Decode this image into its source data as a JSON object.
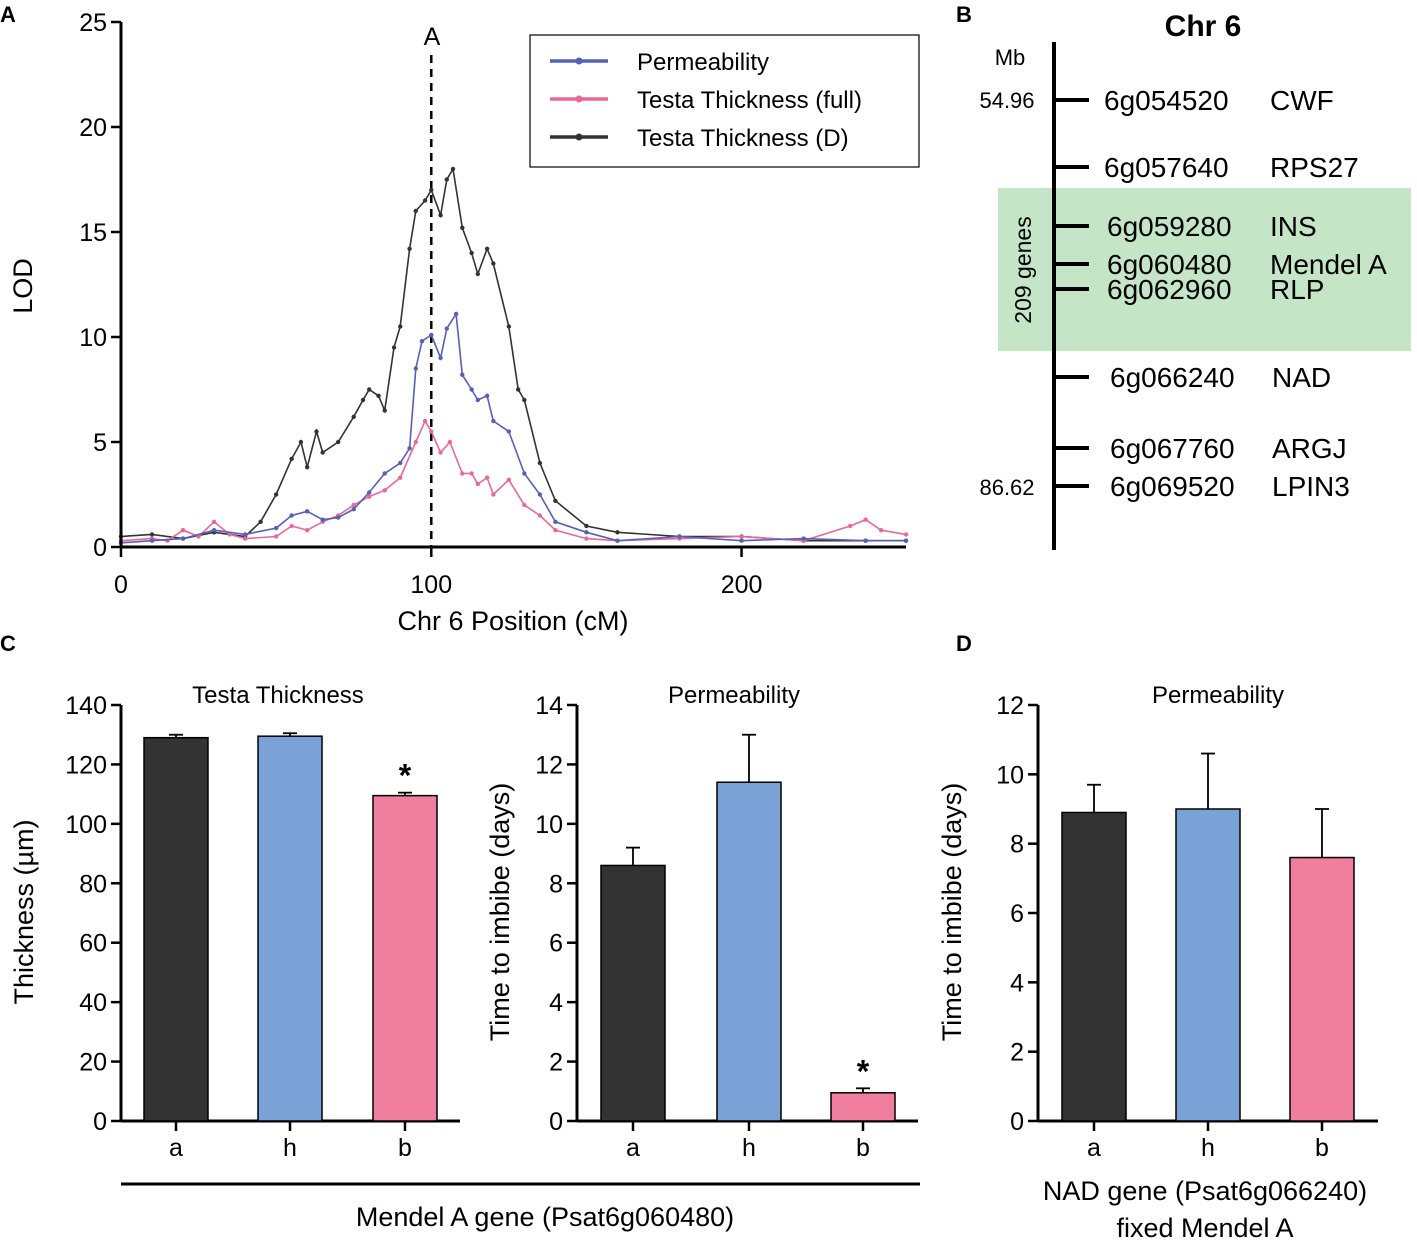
{
  "colors": {
    "dark": "#333333",
    "blue": "#7ba2d6",
    "pink": "#ef7e9f",
    "line_blue": "#5560b8",
    "line_pink": "#e8689a",
    "line_dark": "#333333",
    "green": "#c4e6c7"
  },
  "panelA": {
    "label": "A",
    "marker": "A",
    "chart_data": {
      "type": "line",
      "title": "",
      "xlabel": "Chr 6 Position (cM)",
      "ylabel": "LOD",
      "xlim": [
        0,
        253
      ],
      "ylim": [
        0,
        25
      ],
      "xticks": [
        "0",
        "100",
        "200"
      ],
      "yticks": [
        "0",
        "5",
        "10",
        "15",
        "20",
        "25"
      ],
      "marker_position_cM": 100,
      "legend_position": "top-right",
      "series": [
        {
          "name": "Permeability",
          "color": "#5560b8",
          "x": [
            0,
            10,
            20,
            30,
            40,
            50,
            55,
            60,
            65,
            70,
            75,
            80,
            85,
            90,
            93,
            95,
            97,
            100,
            103,
            105,
            108,
            110,
            113,
            115,
            118,
            120,
            125,
            130,
            135,
            140,
            150,
            160,
            180,
            200,
            220,
            240,
            253
          ],
          "y": [
            0.2,
            0.3,
            0.4,
            0.8,
            0.6,
            0.9,
            1.5,
            1.7,
            1.3,
            1.4,
            1.8,
            2.6,
            3.5,
            4.0,
            4.7,
            8.5,
            9.8,
            10.1,
            9.0,
            10.4,
            11.1,
            8.2,
            7.5,
            7.0,
            7.2,
            6.0,
            5.5,
            3.5,
            2.5,
            1.2,
            0.7,
            0.3,
            0.5,
            0.3,
            0.4,
            0.3,
            0.3
          ]
        },
        {
          "name": "Testa Thickness (full)",
          "color": "#e8689a",
          "x": [
            0,
            10,
            15,
            20,
            25,
            30,
            35,
            40,
            50,
            55,
            60,
            65,
            70,
            75,
            80,
            85,
            90,
            95,
            98,
            100,
            103,
            106,
            110,
            113,
            115,
            118,
            120,
            125,
            130,
            135,
            140,
            150,
            160,
            180,
            200,
            220,
            235,
            240,
            245,
            253
          ],
          "y": [
            0.3,
            0.4,
            0.3,
            0.8,
            0.5,
            1.2,
            0.6,
            0.4,
            0.5,
            1.0,
            0.8,
            1.2,
            1.5,
            2.0,
            2.4,
            2.7,
            3.3,
            5.0,
            6.0,
            5.5,
            4.5,
            5.0,
            3.5,
            3.5,
            3.0,
            3.3,
            2.5,
            3.2,
            2.0,
            1.5,
            0.8,
            0.4,
            0.3,
            0.4,
            0.5,
            0.3,
            1.0,
            1.3,
            0.8,
            0.6
          ]
        },
        {
          "name": "Testa Thickness (D)",
          "color": "#333333",
          "x": [
            0,
            10,
            20,
            30,
            40,
            45,
            50,
            55,
            58,
            60,
            63,
            65,
            70,
            75,
            78,
            80,
            83,
            85,
            88,
            90,
            93,
            95,
            98,
            100,
            103,
            105,
            107,
            110,
            113,
            115,
            118,
            120,
            125,
            128,
            130,
            135,
            140,
            150,
            160,
            180,
            200,
            220,
            240,
            253
          ],
          "y": [
            0.5,
            0.6,
            0.4,
            0.7,
            0.5,
            1.2,
            2.5,
            4.2,
            5.0,
            3.8,
            5.5,
            4.5,
            5.0,
            6.2,
            7.0,
            7.5,
            7.2,
            6.5,
            9.5,
            10.5,
            14.2,
            16.0,
            16.5,
            17.0,
            15.8,
            17.5,
            18.0,
            15.2,
            14.0,
            13.0,
            14.2,
            13.5,
            10.5,
            7.5,
            7.0,
            4.0,
            2.2,
            1.0,
            0.7,
            0.5,
            0.5,
            0.3,
            0.3,
            0.3
          ]
        }
      ]
    }
  },
  "panelB": {
    "label": "B",
    "title": "Chr 6",
    "unit": "Mb",
    "start_mb": "54.96",
    "end_mb": "86.62",
    "highlight_label": "209 genes",
    "genes": [
      {
        "id": "6g054520",
        "name": "CWF"
      },
      {
        "id": "6g057640",
        "name": "RPS27"
      },
      {
        "id": "6g059280",
        "name": "INS"
      },
      {
        "id": "6g060480",
        "name": "Mendel A"
      },
      {
        "id": "6g062960",
        "name": "RLP"
      },
      {
        "id": "6g066240",
        "name": "NAD"
      },
      {
        "id": "6g067760",
        "name": "ARGJ"
      },
      {
        "id": "6g069520",
        "name": "LPIN3"
      }
    ]
  },
  "panelC": {
    "label": "C",
    "group_label": "Mendel A gene (Psat6g060480)",
    "chart_data": [
      {
        "type": "bar",
        "title": "Testa Thickness",
        "xlabel": "",
        "ylabel": "Thickness (µm)",
        "categories": [
          "a",
          "h",
          "b"
        ],
        "values": [
          129,
          129.5,
          109.5
        ],
        "errors": [
          1.0,
          1.0,
          1.0
        ],
        "significance": [
          "",
          "",
          "*"
        ],
        "ylim": [
          0,
          140
        ],
        "yticks": [
          "0",
          "20",
          "40",
          "60",
          "80",
          "100",
          "120",
          "140"
        ]
      },
      {
        "type": "bar",
        "title": "Permeability",
        "xlabel": "",
        "ylabel": "Time to imbibe (days)",
        "categories": [
          "a",
          "h",
          "b"
        ],
        "values": [
          8.6,
          11.4,
          0.95
        ],
        "errors": [
          0.6,
          1.6,
          0.15
        ],
        "significance": [
          "",
          "",
          "*"
        ],
        "ylim": [
          0,
          14
        ],
        "yticks": [
          "0",
          "2",
          "4",
          "6",
          "8",
          "10",
          "12",
          "14"
        ]
      }
    ]
  },
  "panelD": {
    "label": "D",
    "group_label_line1": "NAD gene (Psat6g066240)",
    "group_label_line2": "fixed Mendel A",
    "chart_data": {
      "type": "bar",
      "title": "Permeability",
      "xlabel": "",
      "ylabel": "Time to imbibe (days)",
      "categories": [
        "a",
        "h",
        "b"
      ],
      "values": [
        8.9,
        9.0,
        7.6
      ],
      "errors": [
        0.8,
        1.6,
        1.4
      ],
      "significance": [
        "",
        "",
        ""
      ],
      "ylim": [
        0,
        12
      ],
      "yticks": [
        "0",
        "2",
        "4",
        "6",
        "8",
        "10",
        "12"
      ]
    }
  }
}
